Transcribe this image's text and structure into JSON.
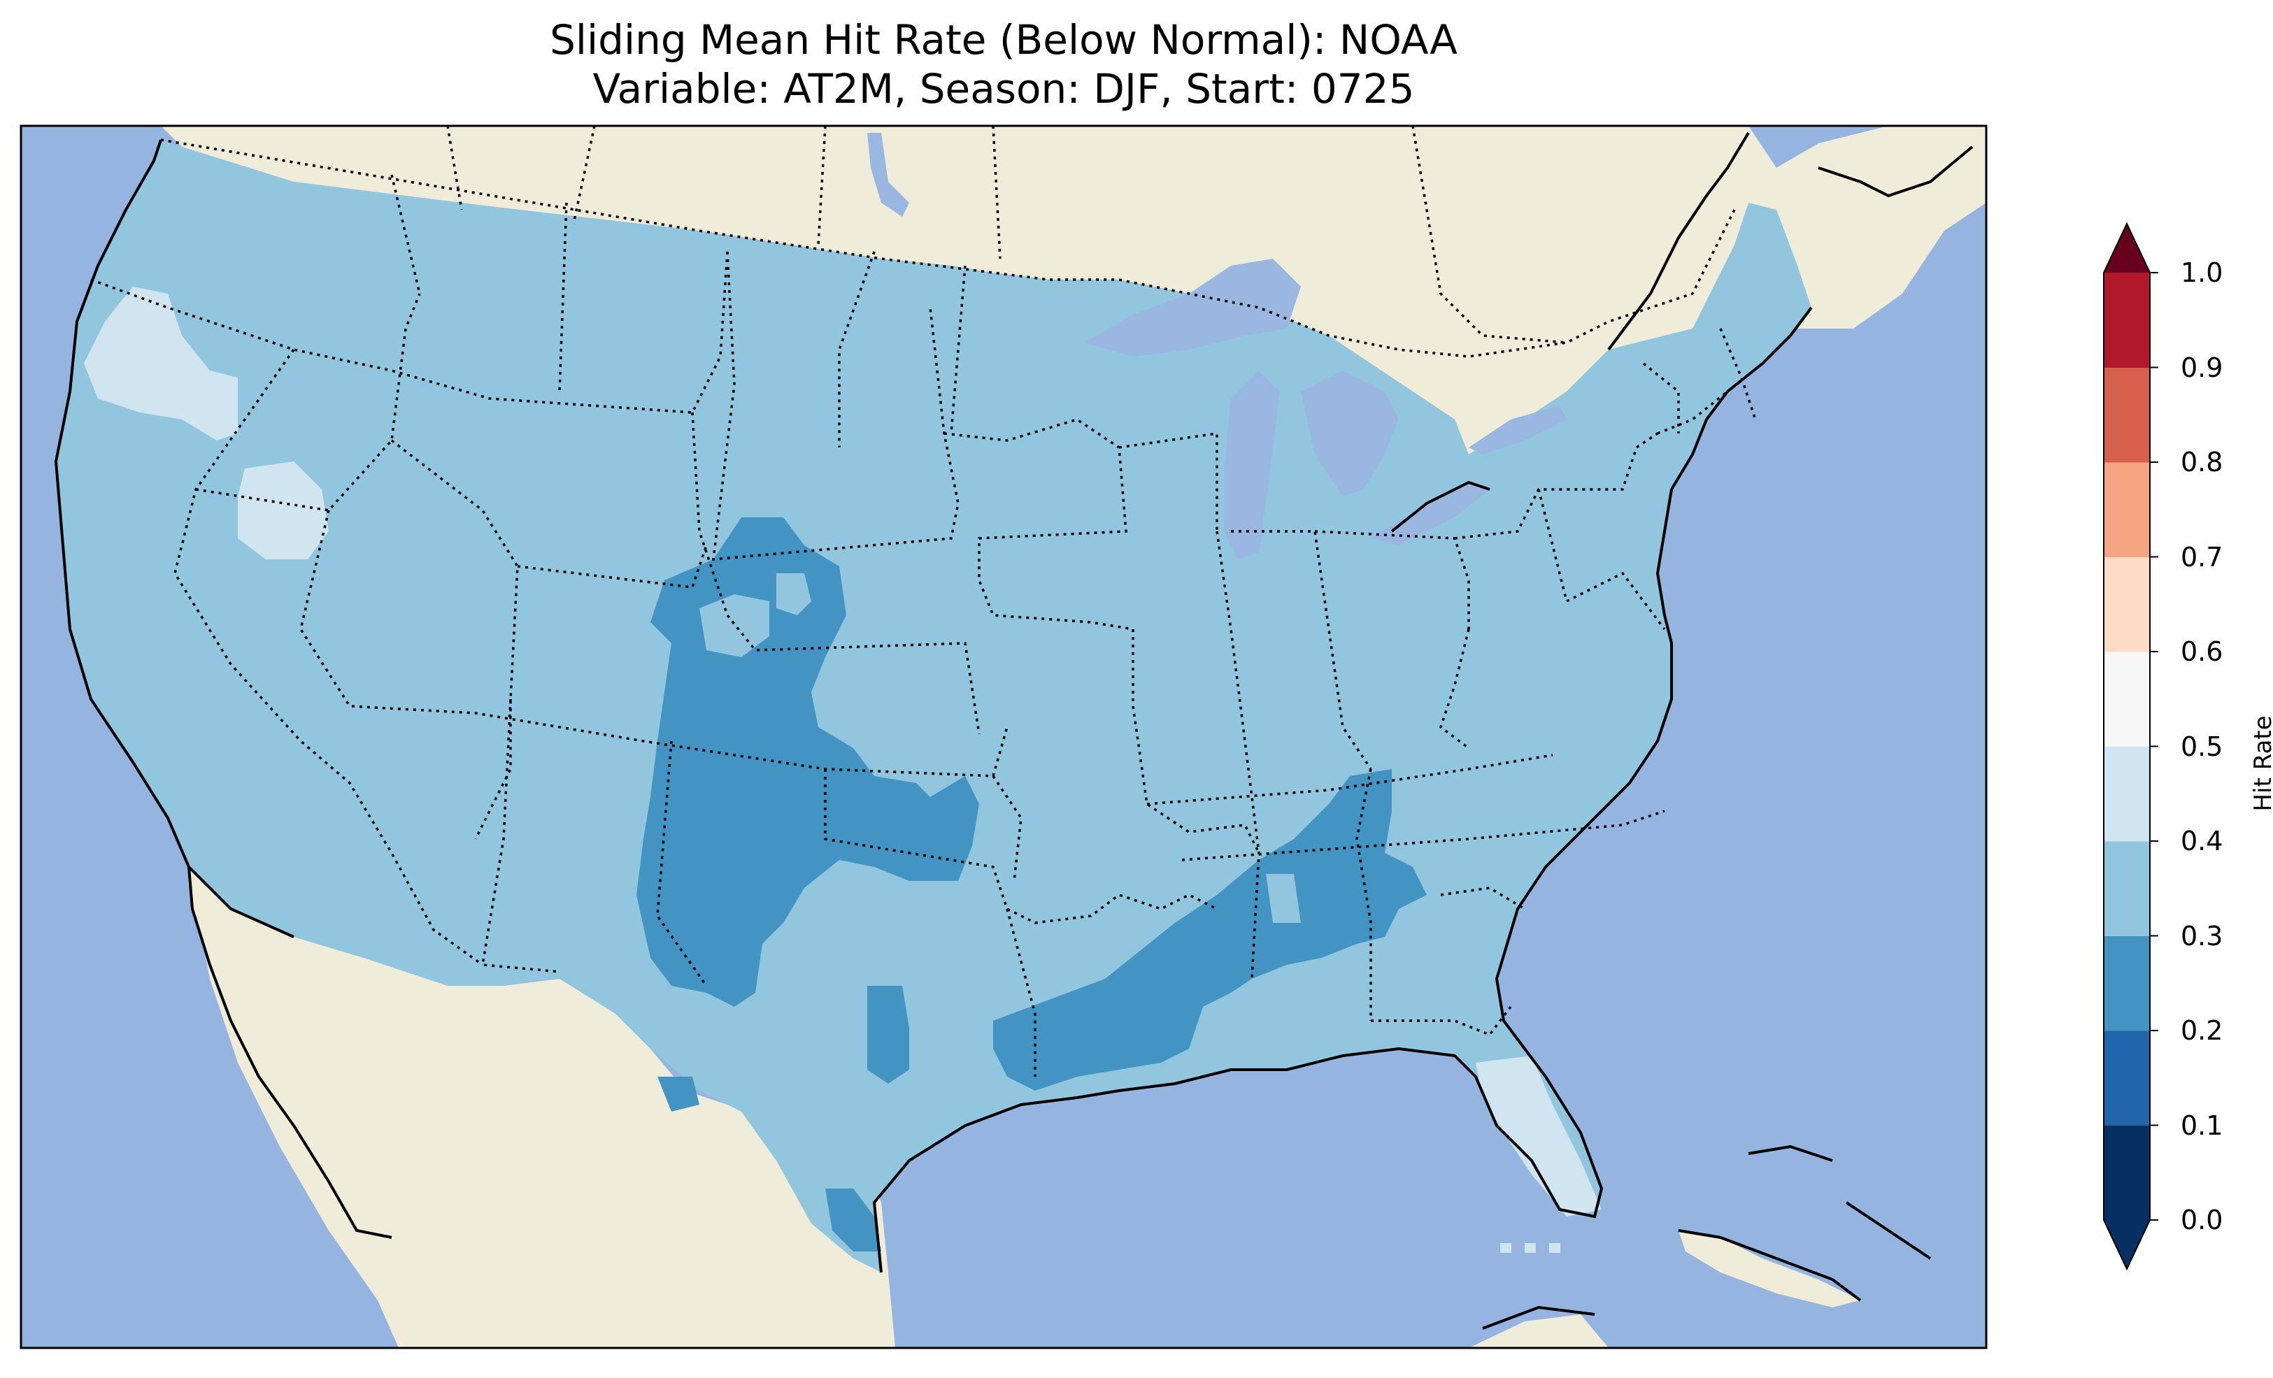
{
  "title": {
    "line1": "Sliding Mean Hit Rate (Below Normal): NOAA",
    "line2": "Variable: AT2M, Season: DJF, Start: 0725"
  },
  "colors": {
    "ocean": "#95b4e0",
    "land": "#efedda",
    "lake": "#9ab7e2"
  },
  "colorbar": {
    "label": "Hit Rate",
    "ticks": [
      "0.0",
      "0.1",
      "0.2",
      "0.3",
      "0.4",
      "0.5",
      "0.6",
      "0.7",
      "0.8",
      "0.9",
      "1.0"
    ],
    "bin_colors": [
      "#053061",
      "#2166ac",
      "#4393c3",
      "#92c5de",
      "#d1e5f0",
      "#f7f7f7",
      "#fddbc7",
      "#f4a582",
      "#d6604d",
      "#b2182b",
      "#67001f"
    ],
    "extend": "both"
  },
  "map_data": {
    "region": "Contiguous United States",
    "dominant_range": "0.3-0.4",
    "areas_0.2_0.3": [
      "Colorado / Wyoming front range",
      "New Mexico / Texas panhandle",
      "Oklahoma",
      "Lower Mississippi valley",
      "Alabama / Tennessee",
      "South Texas"
    ],
    "areas_0.4_0.5": [
      "Western Oregon",
      "Northern Nevada / Idaho border",
      "Florida peninsula"
    ]
  }
}
